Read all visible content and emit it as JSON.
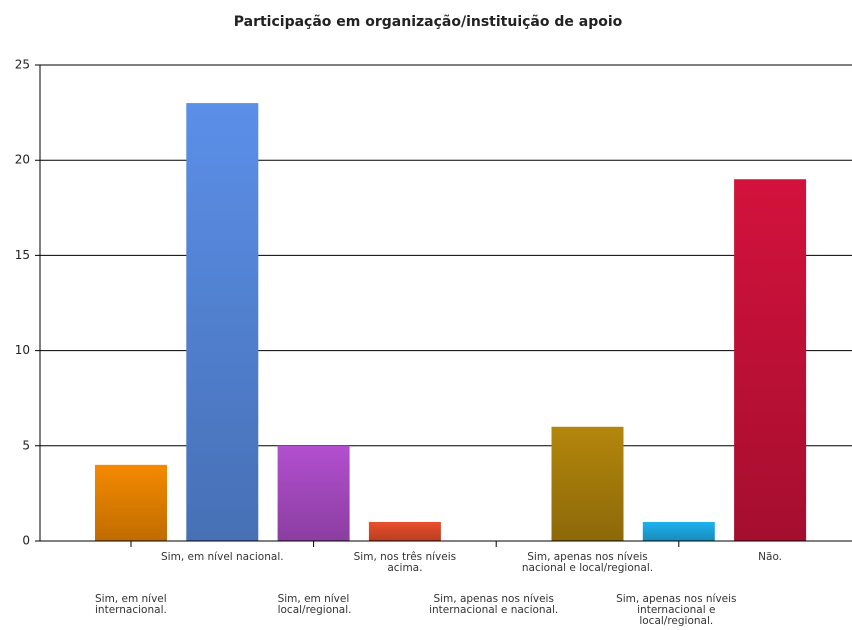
{
  "chart_data": {
    "type": "bar",
    "title": "Participação em organização/instituição de apoio",
    "categories": [
      "Sim, em nível internacional.",
      "Sim, em nível nacional.",
      "Sim, em nível local/regional.",
      "Sim, nos três níveis acima.",
      "Sim, apenas nos níveis internacional e nacional.",
      "Sim, apenas nos níveis nacional e local/regional.",
      "Sim, apenas nos níveis internacional e local/regional.",
      "Não."
    ],
    "values": [
      4,
      23,
      5,
      1,
      0,
      6,
      1,
      19
    ],
    "colors": [
      "#f58a00",
      "#5b8fe8",
      "#b24fcf",
      "#ea4f2c",
      "#888888",
      "#b3870c",
      "#1fb2ef",
      "#d3123c"
    ],
    "ylim": [
      0,
      25
    ],
    "yticks": [
      0,
      5,
      10,
      15,
      20,
      25
    ],
    "grid": true
  }
}
